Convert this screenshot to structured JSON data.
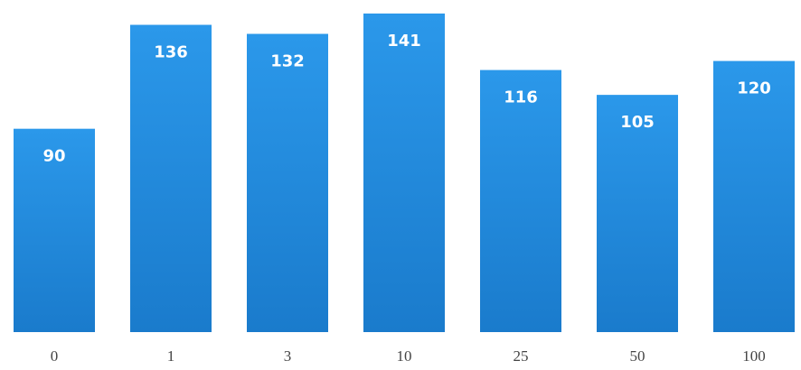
{
  "chart_data": {
    "type": "bar",
    "categories": [
      "0",
      "1",
      "3",
      "10",
      "25",
      "50",
      "100"
    ],
    "values": [
      90,
      136,
      132,
      141,
      116,
      105,
      120
    ],
    "color": "#2190e3"
  }
}
